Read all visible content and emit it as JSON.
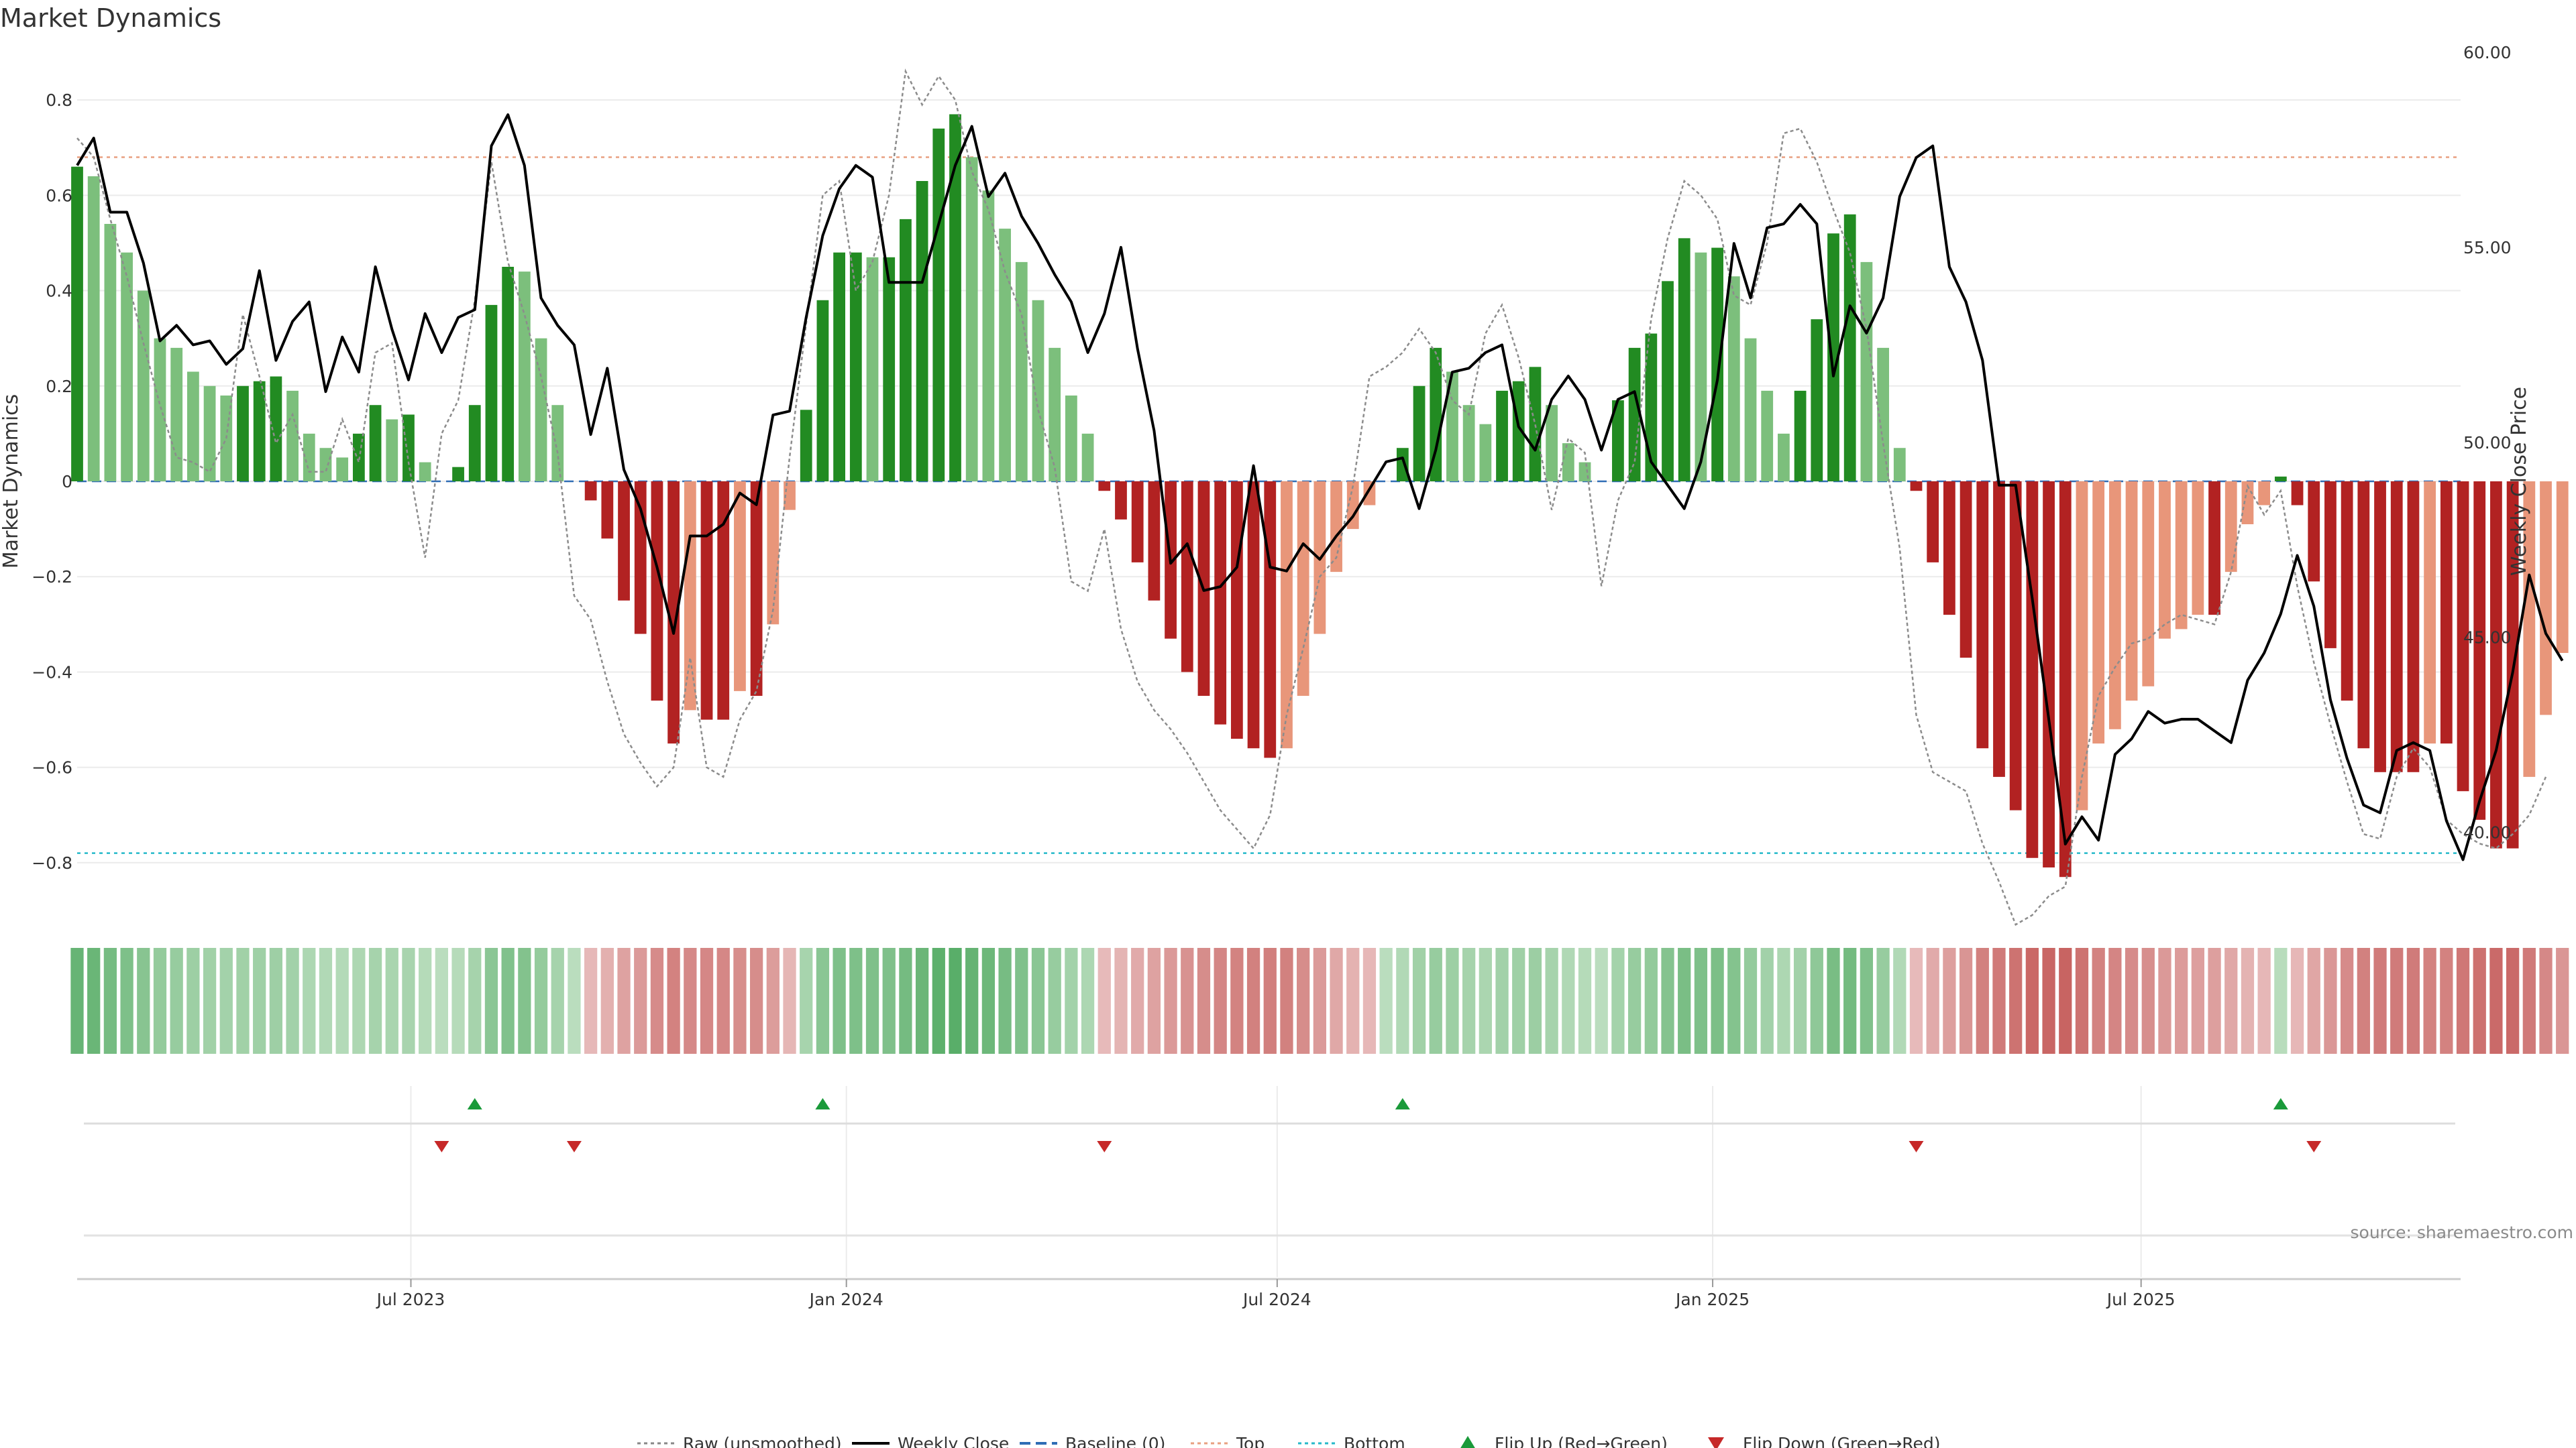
{
  "chart_data": {
    "type": "bar+line",
    "title": "Market Dynamics",
    "ylabel_left": "Market Dynamics",
    "ylabel_right": "Weekly Close Price",
    "ylim_left": [
      -0.9,
      0.9
    ],
    "ylim_right": [
      38.0,
      60.0
    ],
    "yticks_left": [
      0.8,
      0.6,
      0.4,
      0.2,
      0,
      -0.2,
      -0.4,
      -0.6,
      -0.8
    ],
    "yticks_left_labels": [
      "0.8",
      "0.6",
      "0.4",
      "0.2",
      "0",
      "−0.2",
      "−0.4",
      "−0.6",
      "−0.8"
    ],
    "yticks_right": [
      60,
      55,
      50,
      45,
      40
    ],
    "yticks_right_labels": [
      "60.00",
      "55.00",
      "50.00",
      "45.00",
      "40.00"
    ],
    "x_start": "2023-02-10",
    "x_step_days": 7,
    "x_end": "2025-11-13",
    "xticks": [
      {
        "date": "2023-07-01",
        "label": "Jul 2023"
      },
      {
        "date": "2024-01-01",
        "label": "Jan 2024"
      },
      {
        "date": "2024-07-01",
        "label": "Jul 2024"
      },
      {
        "date": "2025-01-01",
        "label": "Jan 2025"
      },
      {
        "date": "2025-07-01",
        "label": "Jul 2025"
      }
    ],
    "top_level": 0.68,
    "bottom_level": -0.78,
    "baseline": 0,
    "series": [
      {
        "name": "Market Dynamics",
        "kind": "bar",
        "values": [
          0.66,
          0.64,
          0.54,
          0.48,
          0.4,
          0.3,
          0.28,
          0.23,
          0.2,
          0.18,
          0.2,
          0.21,
          0.22,
          0.19,
          0.1,
          0.07,
          0.05,
          0.1,
          0.16,
          0.13,
          0.14,
          0.04,
          0,
          0.03,
          0.16,
          0.37,
          0.45,
          0.44,
          0.3,
          0.16,
          0,
          -0.04,
          -0.12,
          -0.25,
          -0.32,
          -0.46,
          -0.55,
          -0.48,
          -0.5,
          -0.5,
          -0.44,
          -0.45,
          -0.3,
          -0.06,
          0.15,
          0.38,
          0.48,
          0.48,
          0.47,
          0.47,
          0.55,
          0.63,
          0.74,
          0.77,
          0.68,
          0.61,
          0.53,
          0.46,
          0.38,
          0.28,
          0.18,
          0.1,
          -0.02,
          -0.08,
          -0.17,
          -0.25,
          -0.33,
          -0.4,
          -0.45,
          -0.51,
          -0.54,
          -0.56,
          -0.58,
          -0.56,
          -0.45,
          -0.32,
          -0.19,
          -0.1,
          -0.05,
          0,
          0.07,
          0.2,
          0.28,
          0.23,
          0.16,
          0.12,
          0.19,
          0.21,
          0.24,
          0.16,
          0.08,
          0.04,
          0,
          0.17,
          0.28,
          0.31,
          0.42,
          0.51,
          0.48,
          0.49,
          0.43,
          0.3,
          0.19,
          0.1,
          0.19,
          0.34,
          0.52,
          0.56,
          0.46,
          0.28,
          0.07,
          -0.02,
          -0.17,
          -0.28,
          -0.37,
          -0.56,
          -0.62,
          -0.69,
          -0.79,
          -0.81,
          -0.83,
          -0.69,
          -0.55,
          -0.52,
          -0.46,
          -0.43,
          -0.33,
          -0.31,
          -0.28,
          -0.28,
          -0.19,
          -0.09,
          -0.05,
          0.01,
          -0.05,
          -0.21,
          -0.35,
          -0.46,
          -0.56,
          -0.61,
          -0.61,
          -0.61,
          -0.55,
          -0.55,
          -0.65,
          -0.71,
          -0.77,
          -0.77,
          -0.62,
          -0.49,
          -0.36
        ]
      },
      {
        "name": "Raw (unsmoothed)",
        "kind": "line",
        "values": [
          0.72,
          0.68,
          0.55,
          0.43,
          0.29,
          0.16,
          0.05,
          0.04,
          0.02,
          0.09,
          0.35,
          0.22,
          0.08,
          0.14,
          0.02,
          0.02,
          0.13,
          0.04,
          0.27,
          0.29,
          0.04,
          -0.16,
          0.1,
          0.17,
          0.38,
          0.67,
          0.46,
          0.35,
          0.22,
          0.06,
          -0.24,
          -0.29,
          -0.42,
          -0.53,
          -0.59,
          -0.64,
          -0.6,
          -0.37,
          -0.6,
          -0.62,
          -0.5,
          -0.44,
          -0.27,
          0.05,
          0.33,
          0.6,
          0.63,
          0.4,
          0.46,
          0.6,
          0.86,
          0.79,
          0.85,
          0.8,
          0.65,
          0.57,
          0.44,
          0.35,
          0.15,
          0.03,
          -0.21,
          -0.23,
          -0.1,
          -0.31,
          -0.42,
          -0.48,
          -0.52,
          -0.57,
          -0.63,
          -0.69,
          -0.73,
          -0.77,
          -0.7,
          -0.49,
          -0.35,
          -0.2,
          -0.16,
          -0.01,
          0.22,
          0.24,
          0.27,
          0.32,
          0.27,
          0.17,
          0.14,
          0.31,
          0.37,
          0.26,
          0.12,
          -0.06,
          0.09,
          0.06,
          -0.22,
          -0.04,
          0.04,
          0.34,
          0.51,
          0.63,
          0.6,
          0.55,
          0.39,
          0.37,
          0.5,
          0.73,
          0.74,
          0.67,
          0.57,
          0.48,
          0.32,
          0.08,
          -0.14,
          -0.49,
          -0.61,
          -0.63,
          -0.65,
          -0.76,
          -0.84,
          -0.93,
          -0.91,
          -0.87,
          -0.85,
          -0.62,
          -0.45,
          -0.39,
          -0.34,
          -0.33,
          -0.3,
          -0.28,
          -0.29,
          -0.3,
          -0.19,
          -0.01,
          -0.07,
          -0.02,
          -0.22,
          -0.38,
          -0.51,
          -0.63,
          -0.74,
          -0.75,
          -0.62,
          -0.56,
          -0.6,
          -0.71,
          -0.74,
          -0.76,
          -0.77,
          -0.74,
          -0.7,
          -0.62
        ]
      },
      {
        "name": "Weekly Close",
        "kind": "line",
        "axis": "right",
        "values": [
          57.1,
          57.8,
          55.9,
          55.9,
          54.6,
          52.6,
          53.0,
          52.5,
          52.6,
          52.0,
          52.4,
          54.4,
          52.1,
          53.1,
          53.6,
          51.3,
          52.7,
          51.8,
          54.5,
          52.9,
          51.6,
          53.3,
          52.3,
          53.2,
          53.4,
          57.6,
          58.4,
          57.1,
          53.7,
          53.0,
          52.5,
          50.2,
          51.9,
          49.3,
          48.3,
          46.8,
          45.1,
          47.6,
          47.6,
          47.9,
          48.7,
          48.4,
          50.7,
          50.8,
          53.2,
          55.3,
          56.5,
          57.1,
          56.8,
          54.1,
          54.1,
          54.1,
          55.6,
          57.1,
          58.1,
          56.3,
          56.9,
          55.8,
          55.1,
          54.3,
          53.6,
          52.3,
          53.3,
          55.0,
          52.4,
          50.3,
          46.9,
          47.4,
          46.2,
          46.3,
          46.8,
          49.4,
          46.8,
          46.7,
          47.4,
          47.0,
          47.6,
          48.1,
          48.8,
          49.5,
          49.6,
          48.3,
          49.8,
          51.8,
          51.9,
          52.3,
          52.5,
          50.4,
          49.8,
          51.1,
          51.7,
          51.1,
          49.8,
          51.1,
          51.3,
          49.5,
          48.9,
          48.3,
          49.5,
          51.6,
          55.1,
          53.7,
          55.5,
          55.6,
          56.1,
          55.6,
          51.7,
          53.5,
          52.8,
          53.7,
          56.3,
          57.3,
          57.6,
          54.5,
          53.6,
          52.1,
          48.9,
          48.9,
          46.0,
          42.9,
          39.7,
          40.4,
          39.8,
          42.0,
          42.4,
          43.1,
          42.8,
          42.9,
          42.9,
          42.6,
          42.3,
          43.9,
          44.6,
          45.6,
          47.1,
          45.8,
          43.4,
          41.9,
          40.7,
          40.5,
          42.1,
          42.3,
          42.1,
          40.3,
          39.3,
          40.8,
          42.1,
          44.1,
          46.6,
          45.1,
          44.4
        ]
      }
    ],
    "flip_up_indices": [
      24,
      45,
      80,
      133
    ],
    "flip_down_indices": [
      22,
      30,
      62,
      111,
      135
    ],
    "legend": [
      {
        "label": "Raw (unsmoothed)",
        "style": "dotted",
        "color": "#888888"
      },
      {
        "label": "Weekly Close",
        "style": "solid",
        "color": "#000000"
      },
      {
        "label": "Baseline (0)",
        "style": "dashed",
        "color": "#2f6db5"
      },
      {
        "label": "Top",
        "style": "dotted",
        "color": "#e8a081"
      },
      {
        "label": "Bottom",
        "style": "dotted",
        "color": "#26b9c9"
      },
      {
        "label": "Flip Up (Red→Green)",
        "style": "triangle-up",
        "color": "#1a9a3a"
      },
      {
        "label": "Flip Down (Green→Red)",
        "style": "triangle-down",
        "color": "#c62828"
      }
    ],
    "legend_position": "bottom-center"
  },
  "source_text": "source: sharemaestro.com",
  "colors": {
    "strong_green": "#228b22",
    "light_green": "#7cbf7c",
    "strong_red": "#b22222",
    "light_red": "#e8967a",
    "grid": "#ebebeb"
  }
}
